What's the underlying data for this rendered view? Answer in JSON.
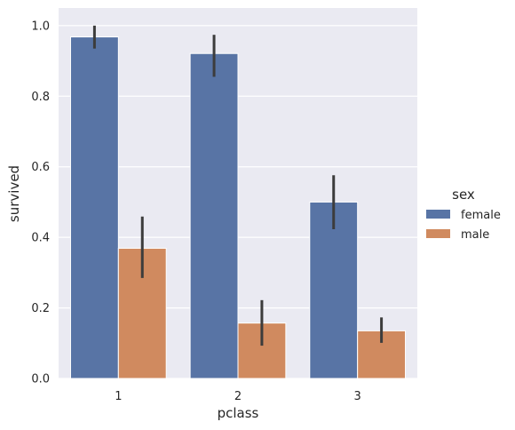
{
  "chart_data": {
    "type": "bar",
    "xlabel": "pclass",
    "ylabel": "survived",
    "categories": [
      "1",
      "2",
      "3"
    ],
    "ylim": [
      0,
      1.05
    ],
    "yticks": [
      0.0,
      0.2,
      0.4,
      0.6,
      0.8,
      1.0
    ],
    "ytick_labels": [
      "0.0",
      "0.2",
      "0.4",
      "0.6",
      "0.8",
      "1.0"
    ],
    "grid": true,
    "legend": {
      "title": "sex",
      "placement": "right"
    },
    "series": [
      {
        "name": "female",
        "color": "#5874a5",
        "values": [
          0.968,
          0.921,
          0.5
        ],
        "ci_low": [
          0.935,
          0.855,
          0.423
        ],
        "ci_high": [
          1.0,
          0.974,
          0.576
        ]
      },
      {
        "name": "male",
        "color": "#d08a5f",
        "values": [
          0.369,
          0.157,
          0.135
        ],
        "ci_low": [
          0.285,
          0.093,
          0.101
        ],
        "ci_high": [
          0.459,
          0.222,
          0.173
        ]
      }
    ]
  }
}
